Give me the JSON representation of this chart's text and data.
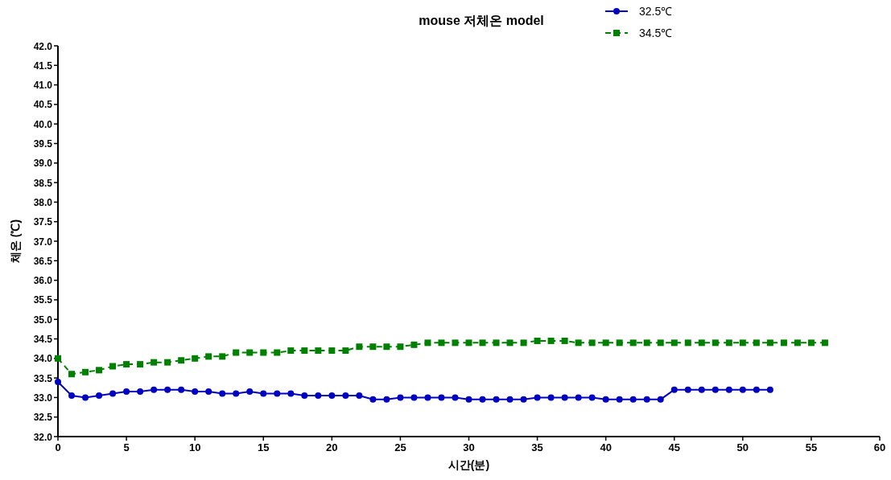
{
  "chart_data": {
    "type": "line",
    "title": "mouse 저체온 model",
    "xlabel": "시간(분)",
    "ylabel": "체온 (℃)",
    "legend": "top",
    "grid": false,
    "xlim": [
      0,
      60
    ],
    "xticks": [
      0,
      5,
      10,
      15,
      20,
      25,
      30,
      35,
      40,
      45,
      50,
      55,
      60
    ],
    "ylim": [
      32,
      42
    ],
    "yticks": [
      {
        "value": 32,
        "label": "32.0"
      },
      {
        "value": 32.5,
        "label": "32.5"
      },
      {
        "value": 33,
        "label": "33.0"
      },
      {
        "value": 33.5,
        "label": "33.5"
      },
      {
        "value": 34,
        "label": "34.0"
      },
      {
        "value": 34.5,
        "label": "34.5"
      },
      {
        "value": 35,
        "label": "35.0"
      },
      {
        "value": 35.5,
        "label": "35.5"
      },
      {
        "value": 36,
        "label": "36.0"
      },
      {
        "value": 36.5,
        "label": "36.5"
      },
      {
        "value": 37,
        "label": "37.0"
      },
      {
        "value": 37.5,
        "label": "37.5"
      },
      {
        "value": 38,
        "label": "38.0"
      },
      {
        "value": 38.5,
        "label": "38.5"
      },
      {
        "value": 39,
        "label": "39.0"
      },
      {
        "value": 39.5,
        "label": "39.5"
      },
      {
        "value": 40,
        "label": "40.0"
      },
      {
        "value": 40.5,
        "label": "40.5"
      },
      {
        "value": 41,
        "label": "41.0"
      },
      {
        "value": 41.5,
        "label": "41.5"
      },
      {
        "value": 42,
        "label": "42.0"
      }
    ],
    "series": [
      {
        "name": "32.5℃",
        "color": "#0000c0",
        "marker": "circle",
        "line_style": "solid",
        "x": [
          0,
          1,
          2,
          3,
          4,
          5,
          6,
          7,
          8,
          9,
          10,
          11,
          12,
          13,
          14,
          15,
          16,
          17,
          18,
          19,
          20,
          21,
          22,
          23,
          24,
          25,
          26,
          27,
          28,
          29,
          30,
          31,
          32,
          33,
          34,
          35,
          36,
          37,
          38,
          39,
          40,
          41,
          42,
          43,
          44,
          45,
          46,
          47,
          48,
          49,
          50,
          51,
          52
        ],
        "values": [
          33.4,
          33.05,
          33.0,
          33.05,
          33.1,
          33.15,
          33.15,
          33.2,
          33.2,
          33.2,
          33.15,
          33.15,
          33.1,
          33.1,
          33.15,
          33.1,
          33.1,
          33.1,
          33.05,
          33.05,
          33.05,
          33.05,
          33.05,
          32.95,
          32.95,
          33.0,
          33.0,
          33.0,
          33.0,
          33.0,
          32.95,
          32.95,
          32.95,
          32.95,
          32.95,
          33.0,
          33.0,
          33.0,
          33.0,
          33.0,
          32.95,
          32.95,
          32.95,
          32.95,
          32.95,
          33.2,
          33.2,
          33.2,
          33.2,
          33.2,
          33.2,
          33.2,
          33.2
        ]
      },
      {
        "name": "34.5℃",
        "color": "#008000",
        "marker": "square",
        "line_style": "dashed",
        "x": [
          0,
          1,
          2,
          3,
          4,
          5,
          6,
          7,
          8,
          9,
          10,
          11,
          12,
          13,
          14,
          15,
          16,
          17,
          18,
          19,
          20,
          21,
          22,
          23,
          24,
          25,
          26,
          27,
          28,
          29,
          30,
          31,
          32,
          33,
          34,
          35,
          36,
          37,
          38,
          39,
          40,
          41,
          42,
          43,
          44,
          45,
          46,
          47,
          48,
          49,
          50,
          51,
          52,
          53,
          54,
          55,
          56
        ],
        "values": [
          34.0,
          33.6,
          33.65,
          33.7,
          33.8,
          33.85,
          33.85,
          33.9,
          33.9,
          33.95,
          34.0,
          34.05,
          34.05,
          34.15,
          34.15,
          34.15,
          34.15,
          34.2,
          34.2,
          34.2,
          34.2,
          34.2,
          34.3,
          34.3,
          34.3,
          34.3,
          34.35,
          34.4,
          34.4,
          34.4,
          34.4,
          34.4,
          34.4,
          34.4,
          34.4,
          34.45,
          34.45,
          34.45,
          34.4,
          34.4,
          34.4,
          34.4,
          34.4,
          34.4,
          34.4,
          34.4,
          34.4,
          34.4,
          34.4,
          34.4,
          34.4,
          34.4,
          34.4,
          34.4,
          34.4,
          34.4,
          34.4
        ]
      }
    ]
  }
}
